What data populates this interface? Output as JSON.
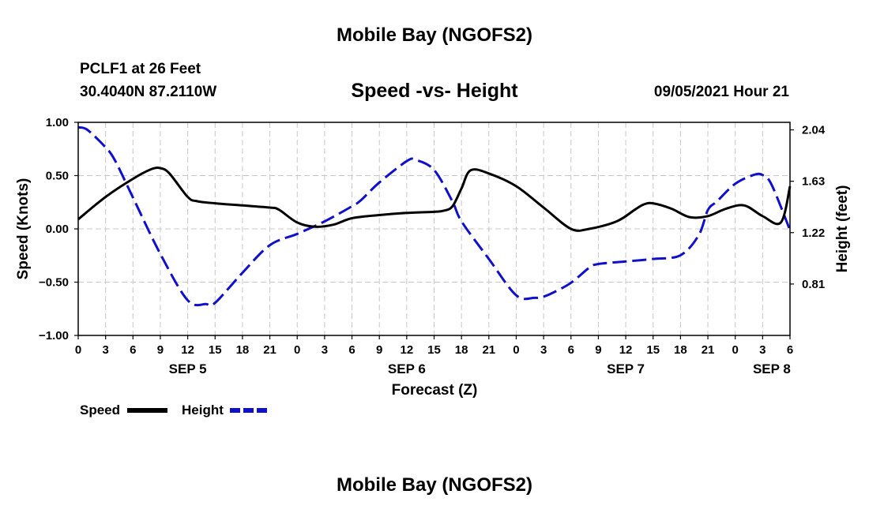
{
  "header": {
    "title": "Mobile Bay (NGOFS2)",
    "station": "PCLF1 at 26 Feet",
    "coords": "30.4040N  87.2110W",
    "subtitle": "Speed -vs- Height",
    "timestamp": "09/05/2021 Hour 21"
  },
  "footer": {
    "title": "Mobile Bay (NGOFS2)"
  },
  "legend": [
    {
      "label": "Speed",
      "color": "#000000",
      "style": "solid"
    },
    {
      "label": "Height",
      "color": "#1010cc",
      "style": "dashed"
    }
  ],
  "chart_data": {
    "type": "line",
    "xlabel": "Forecast (Z)",
    "ylabel_left": "Speed (Knots)",
    "ylabel_right": "Height (feet)",
    "x_range_hours": [
      0,
      78
    ],
    "x_ticks": [
      {
        "hour": 0,
        "label": "0"
      },
      {
        "hour": 3,
        "label": "3"
      },
      {
        "hour": 6,
        "label": "6"
      },
      {
        "hour": 9,
        "label": "9"
      },
      {
        "hour": 12,
        "label": "12"
      },
      {
        "hour": 15,
        "label": "15"
      },
      {
        "hour": 18,
        "label": "18"
      },
      {
        "hour": 21,
        "label": "21"
      },
      {
        "hour": 24,
        "label": "0"
      },
      {
        "hour": 27,
        "label": "3"
      },
      {
        "hour": 30,
        "label": "6"
      },
      {
        "hour": 33,
        "label": "9"
      },
      {
        "hour": 36,
        "label": "12"
      },
      {
        "hour": 39,
        "label": "15"
      },
      {
        "hour": 42,
        "label": "18"
      },
      {
        "hour": 45,
        "label": "21"
      },
      {
        "hour": 48,
        "label": "0"
      },
      {
        "hour": 51,
        "label": "3"
      },
      {
        "hour": 54,
        "label": "6"
      },
      {
        "hour": 57,
        "label": "9"
      },
      {
        "hour": 60,
        "label": "12"
      },
      {
        "hour": 63,
        "label": "15"
      },
      {
        "hour": 66,
        "label": "18"
      },
      {
        "hour": 69,
        "label": "21"
      },
      {
        "hour": 72,
        "label": "0"
      },
      {
        "hour": 75,
        "label": "3"
      },
      {
        "hour": 78,
        "label": "6"
      }
    ],
    "date_labels": [
      {
        "hour": 12,
        "label": "SEP 5"
      },
      {
        "hour": 36,
        "label": "SEP 6"
      },
      {
        "hour": 60,
        "label": "SEP 7"
      },
      {
        "hour": 76,
        "label": "SEP 8"
      }
    ],
    "y_left": {
      "range": [
        -1.0,
        1.0
      ],
      "ticks": [
        {
          "value": 1.0,
          "label": "1.00"
        },
        {
          "value": 0.5,
          "label": "0.50"
        },
        {
          "value": 0.0,
          "label": "0.00"
        },
        {
          "value": -0.5,
          "label": "−0.50"
        },
        {
          "value": -1.0,
          "label": "−1.00"
        }
      ]
    },
    "y_right": {
      "range": [
        0.4,
        2.1
      ],
      "ticks": [
        {
          "value": 2.04,
          "label": "2.04"
        },
        {
          "value": 1.63,
          "label": "1.63"
        },
        {
          "value": 1.22,
          "label": "1.22"
        },
        {
          "value": 0.81,
          "label": "0.81"
        }
      ]
    },
    "grid": true,
    "series": [
      {
        "name": "Speed",
        "axis": "left",
        "color": "#000000",
        "dash": "solid",
        "x": [
          0,
          3,
          6,
          8,
          9,
          10,
          12,
          13,
          15,
          18,
          21,
          22,
          24,
          26,
          28,
          30,
          33,
          36,
          39,
          40,
          41,
          42,
          43,
          45,
          48,
          51,
          54,
          56,
          59,
          61,
          62,
          63,
          65,
          67,
          69,
          71,
          73,
          75,
          77,
          78
        ],
        "y": [
          0.09,
          0.3,
          0.47,
          0.56,
          0.57,
          0.52,
          0.3,
          0.26,
          0.24,
          0.22,
          0.2,
          0.18,
          0.06,
          0.02,
          0.04,
          0.1,
          0.13,
          0.15,
          0.16,
          0.17,
          0.21,
          0.38,
          0.55,
          0.52,
          0.4,
          0.2,
          0.0,
          0.0,
          0.07,
          0.18,
          0.23,
          0.24,
          0.19,
          0.11,
          0.12,
          0.19,
          0.22,
          0.12,
          0.06,
          0.4
        ]
      },
      {
        "name": "Height",
        "axis": "right",
        "color": "#1010cc",
        "dash": "dashed",
        "x": [
          0,
          1,
          3,
          4,
          6,
          9,
          12,
          14,
          15,
          18,
          21,
          24,
          27,
          30,
          31,
          33,
          36,
          37,
          39,
          41,
          42,
          45,
          48,
          50,
          51,
          52,
          54,
          56,
          57,
          60,
          63,
          66,
          68,
          69,
          70,
          72,
          74,
          75,
          76,
          78
        ],
        "y": [
          2.06,
          2.04,
          1.9,
          1.8,
          1.5,
          1.05,
          0.68,
          0.65,
          0.66,
          0.9,
          1.12,
          1.21,
          1.31,
          1.43,
          1.48,
          1.62,
          1.79,
          1.8,
          1.72,
          1.47,
          1.31,
          1.01,
          0.72,
          0.7,
          0.71,
          0.74,
          0.82,
          0.94,
          0.97,
          0.99,
          1.01,
          1.04,
          1.2,
          1.4,
          1.47,
          1.61,
          1.68,
          1.68,
          1.6,
          1.24
        ]
      }
    ]
  }
}
